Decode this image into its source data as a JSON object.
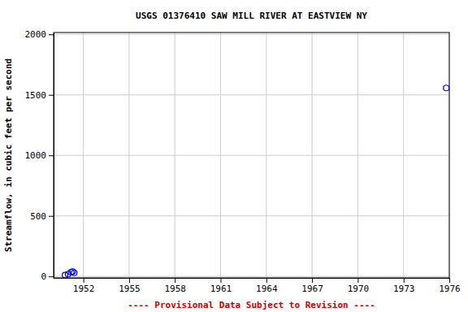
{
  "chart_data": {
    "type": "scatter",
    "title": "USGS 01376410 SAW MILL RIVER AT EASTVIEW NY",
    "x_label": "",
    "y_label": "Streamflow, in cubic feet per second",
    "footer": "---- Provisional Data Subject to Revision ----",
    "x": [
      1950.8,
      1951.0,
      1951.2,
      1951.3,
      1951.4,
      1975.8
    ],
    "values": [
      10,
      20,
      35,
      40,
      30,
      1557
    ],
    "color": "#0000cc",
    "marker": "open-circle",
    "xlim": [
      1950.05,
      1976
    ],
    "xticks": [
      1952,
      1955,
      1958,
      1961,
      1964,
      1967,
      1970,
      1973,
      1976
    ],
    "ylim": [
      -12,
      2015
    ],
    "yticks": [
      0,
      500,
      1000,
      1500,
      2000
    ],
    "grid": true
  }
}
